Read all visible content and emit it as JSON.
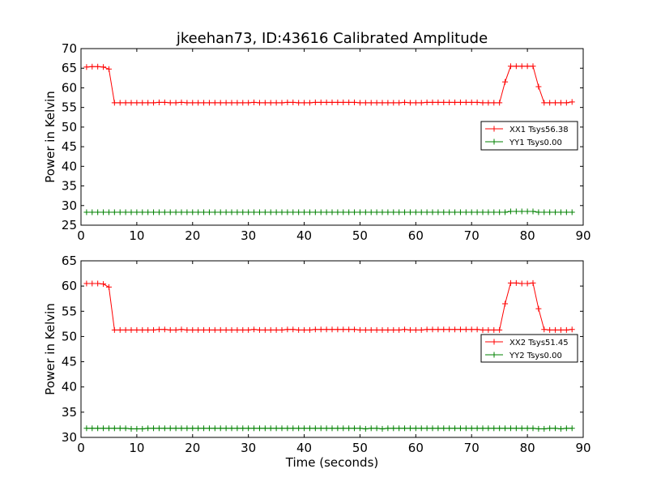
{
  "figure": {
    "title": "jkeehan73, ID:43616 Calibrated Amplitude",
    "xlabel": "Time (seconds)"
  },
  "chart_data": [
    {
      "type": "line",
      "title": "jkeehan73, ID:43616 Calibrated Amplitude",
      "xlabel": "",
      "ylabel": "Power in Kelvin",
      "xlim": [
        0,
        90
      ],
      "ylim": [
        25,
        70
      ],
      "xticks": [
        0,
        10,
        20,
        30,
        40,
        50,
        60,
        70,
        80,
        90
      ],
      "yticks": [
        25,
        30,
        35,
        40,
        45,
        50,
        55,
        60,
        65,
        70
      ],
      "grid": false,
      "legend_position": "center-right",
      "series": [
        {
          "name": "XX1 Tsys56.38",
          "color": "#ff0000",
          "marker": "plus",
          "x": [
            1,
            2,
            3,
            4,
            5,
            6,
            7,
            8,
            9,
            10,
            11,
            12,
            13,
            14,
            15,
            16,
            17,
            18,
            19,
            20,
            21,
            22,
            23,
            24,
            25,
            26,
            27,
            28,
            29,
            30,
            31,
            32,
            33,
            34,
            35,
            36,
            37,
            38,
            39,
            40,
            41,
            42,
            43,
            44,
            45,
            46,
            47,
            48,
            49,
            50,
            51,
            52,
            53,
            54,
            55,
            56,
            57,
            58,
            59,
            60,
            61,
            62,
            63,
            64,
            65,
            66,
            67,
            68,
            69,
            70,
            71,
            72,
            73,
            74,
            75,
            76,
            77,
            78,
            79,
            80,
            81,
            82,
            83,
            84,
            85,
            86,
            87,
            88
          ],
          "values": [
            65.3,
            65.4,
            65.4,
            65.3,
            64.8,
            56.2,
            56.2,
            56.2,
            56.2,
            56.2,
            56.2,
            56.2,
            56.2,
            56.3,
            56.3,
            56.2,
            56.2,
            56.3,
            56.2,
            56.2,
            56.2,
            56.2,
            56.2,
            56.2,
            56.2,
            56.2,
            56.2,
            56.2,
            56.2,
            56.2,
            56.3,
            56.2,
            56.2,
            56.2,
            56.2,
            56.2,
            56.3,
            56.3,
            56.2,
            56.2,
            56.2,
            56.3,
            56.3,
            56.3,
            56.3,
            56.3,
            56.3,
            56.3,
            56.3,
            56.2,
            56.2,
            56.2,
            56.2,
            56.2,
            56.2,
            56.2,
            56.2,
            56.3,
            56.2,
            56.2,
            56.2,
            56.3,
            56.3,
            56.3,
            56.3,
            56.3,
            56.3,
            56.3,
            56.3,
            56.3,
            56.3,
            56.2,
            56.2,
            56.2,
            56.2,
            61.5,
            65.5,
            65.5,
            65.5,
            65.5,
            65.5,
            60.3,
            56.2,
            56.2,
            56.2,
            56.2,
            56.2,
            56.4
          ]
        },
        {
          "name": "YY1 Tsys0.00",
          "color": "#008000",
          "marker": "plus",
          "x": [
            1,
            2,
            3,
            4,
            5,
            6,
            7,
            8,
            9,
            10,
            11,
            12,
            13,
            14,
            15,
            16,
            17,
            18,
            19,
            20,
            21,
            22,
            23,
            24,
            25,
            26,
            27,
            28,
            29,
            30,
            31,
            32,
            33,
            34,
            35,
            36,
            37,
            38,
            39,
            40,
            41,
            42,
            43,
            44,
            45,
            46,
            47,
            48,
            49,
            50,
            51,
            52,
            53,
            54,
            55,
            56,
            57,
            58,
            59,
            60,
            61,
            62,
            63,
            64,
            65,
            66,
            67,
            68,
            69,
            70,
            71,
            72,
            73,
            74,
            75,
            76,
            77,
            78,
            79,
            80,
            81,
            82,
            83,
            84,
            85,
            86,
            87,
            88
          ],
          "values": [
            28.3,
            28.3,
            28.3,
            28.3,
            28.3,
            28.3,
            28.3,
            28.3,
            28.3,
            28.3,
            28.3,
            28.3,
            28.3,
            28.3,
            28.3,
            28.3,
            28.3,
            28.3,
            28.3,
            28.3,
            28.3,
            28.3,
            28.3,
            28.3,
            28.3,
            28.3,
            28.3,
            28.3,
            28.3,
            28.3,
            28.3,
            28.3,
            28.3,
            28.3,
            28.3,
            28.3,
            28.3,
            28.3,
            28.3,
            28.3,
            28.3,
            28.3,
            28.3,
            28.3,
            28.3,
            28.3,
            28.3,
            28.3,
            28.3,
            28.3,
            28.3,
            28.3,
            28.3,
            28.3,
            28.3,
            28.3,
            28.3,
            28.3,
            28.3,
            28.3,
            28.3,
            28.3,
            28.3,
            28.3,
            28.3,
            28.3,
            28.3,
            28.3,
            28.3,
            28.3,
            28.3,
            28.3,
            28.3,
            28.3,
            28.3,
            28.3,
            28.5,
            28.5,
            28.5,
            28.5,
            28.5,
            28.3,
            28.3,
            28.3,
            28.3,
            28.3,
            28.3,
            28.3
          ]
        }
      ]
    },
    {
      "type": "line",
      "title": "",
      "xlabel": "Time (seconds)",
      "ylabel": "Power in Kelvin",
      "xlim": [
        0,
        90
      ],
      "ylim": [
        30,
        65
      ],
      "xticks": [
        0,
        10,
        20,
        30,
        40,
        50,
        60,
        70,
        80,
        90
      ],
      "yticks": [
        30,
        35,
        40,
        45,
        50,
        55,
        60,
        65
      ],
      "grid": false,
      "legend_position": "center-right",
      "series": [
        {
          "name": "XX2 Tsys51.45",
          "color": "#ff0000",
          "marker": "plus",
          "x": [
            1,
            2,
            3,
            4,
            5,
            6,
            7,
            8,
            9,
            10,
            11,
            12,
            13,
            14,
            15,
            16,
            17,
            18,
            19,
            20,
            21,
            22,
            23,
            24,
            25,
            26,
            27,
            28,
            29,
            30,
            31,
            32,
            33,
            34,
            35,
            36,
            37,
            38,
            39,
            40,
            41,
            42,
            43,
            44,
            45,
            46,
            47,
            48,
            49,
            50,
            51,
            52,
            53,
            54,
            55,
            56,
            57,
            58,
            59,
            60,
            61,
            62,
            63,
            64,
            65,
            66,
            67,
            68,
            69,
            70,
            71,
            72,
            73,
            74,
            75,
            76,
            77,
            78,
            79,
            80,
            81,
            82,
            83,
            84,
            85,
            86,
            87,
            88
          ],
          "values": [
            60.5,
            60.5,
            60.5,
            60.4,
            59.8,
            51.3,
            51.3,
            51.3,
            51.3,
            51.3,
            51.3,
            51.3,
            51.3,
            51.4,
            51.4,
            51.3,
            51.3,
            51.4,
            51.3,
            51.3,
            51.3,
            51.3,
            51.3,
            51.3,
            51.3,
            51.3,
            51.3,
            51.3,
            51.3,
            51.3,
            51.4,
            51.3,
            51.3,
            51.3,
            51.3,
            51.3,
            51.4,
            51.4,
            51.3,
            51.3,
            51.3,
            51.4,
            51.4,
            51.4,
            51.4,
            51.4,
            51.4,
            51.4,
            51.4,
            51.3,
            51.3,
            51.3,
            51.3,
            51.3,
            51.3,
            51.3,
            51.3,
            51.4,
            51.3,
            51.3,
            51.3,
            51.4,
            51.4,
            51.4,
            51.4,
            51.4,
            51.4,
            51.4,
            51.4,
            51.4,
            51.4,
            51.3,
            51.3,
            51.3,
            51.3,
            56.5,
            60.6,
            60.6,
            60.5,
            60.5,
            60.6,
            55.5,
            51.4,
            51.3,
            51.3,
            51.3,
            51.3,
            51.4
          ]
        },
        {
          "name": "YY2 Tsys0.00",
          "color": "#008000",
          "marker": "plus",
          "x": [
            1,
            2,
            3,
            4,
            5,
            6,
            7,
            8,
            9,
            10,
            11,
            12,
            13,
            14,
            15,
            16,
            17,
            18,
            19,
            20,
            21,
            22,
            23,
            24,
            25,
            26,
            27,
            28,
            29,
            30,
            31,
            32,
            33,
            34,
            35,
            36,
            37,
            38,
            39,
            40,
            41,
            42,
            43,
            44,
            45,
            46,
            47,
            48,
            49,
            50,
            51,
            52,
            53,
            54,
            55,
            56,
            57,
            58,
            59,
            60,
            61,
            62,
            63,
            64,
            65,
            66,
            67,
            68,
            69,
            70,
            71,
            72,
            73,
            74,
            75,
            76,
            77,
            78,
            79,
            80,
            81,
            82,
            83,
            84,
            85,
            86,
            87,
            88
          ],
          "values": [
            31.8,
            31.8,
            31.8,
            31.8,
            31.8,
            31.8,
            31.8,
            31.8,
            31.7,
            31.7,
            31.7,
            31.8,
            31.8,
            31.8,
            31.8,
            31.8,
            31.8,
            31.8,
            31.8,
            31.8,
            31.8,
            31.8,
            31.8,
            31.8,
            31.8,
            31.8,
            31.8,
            31.8,
            31.8,
            31.8,
            31.8,
            31.8,
            31.8,
            31.8,
            31.8,
            31.8,
            31.8,
            31.8,
            31.8,
            31.8,
            31.8,
            31.8,
            31.8,
            31.8,
            31.8,
            31.8,
            31.8,
            31.8,
            31.8,
            31.8,
            31.7,
            31.8,
            31.8,
            31.7,
            31.8,
            31.8,
            31.8,
            31.8,
            31.8,
            31.8,
            31.8,
            31.8,
            31.8,
            31.8,
            31.8,
            31.8,
            31.8,
            31.8,
            31.8,
            31.8,
            31.8,
            31.8,
            31.8,
            31.8,
            31.8,
            31.8,
            31.8,
            31.8,
            31.8,
            31.8,
            31.8,
            31.7,
            31.7,
            31.8,
            31.8,
            31.7,
            31.8,
            31.8
          ]
        }
      ]
    }
  ]
}
